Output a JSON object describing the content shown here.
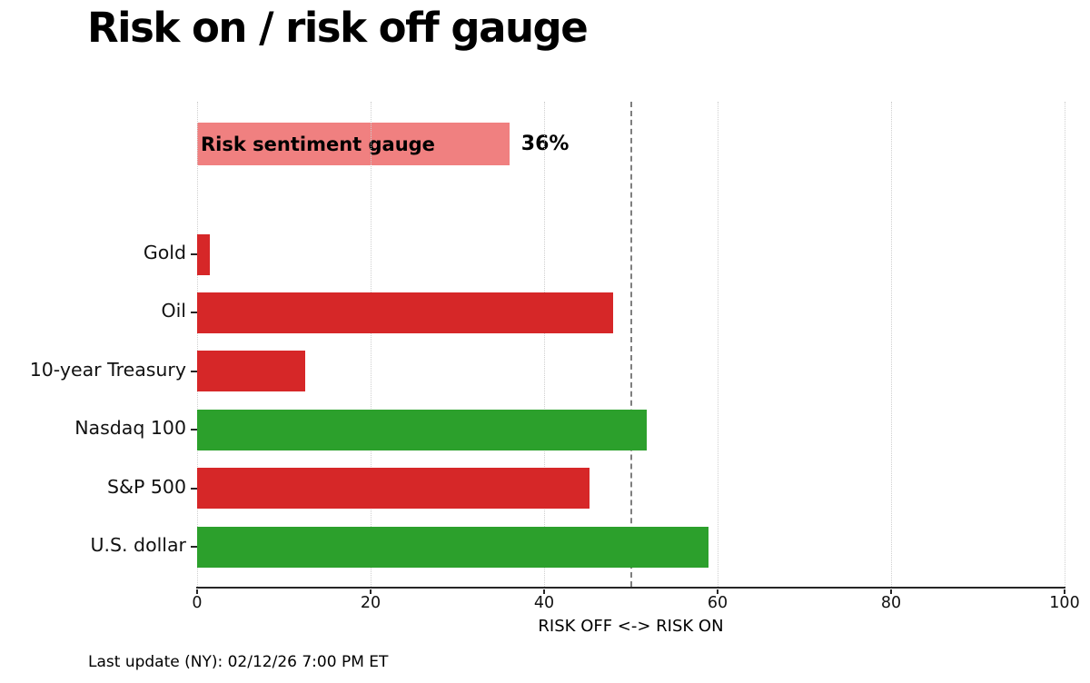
{
  "title": "Risk on / risk off gauge",
  "footer": "Last update (NY): 02/12/26 7:00 PM ET",
  "gauge": {
    "label": "Risk sentiment gauge",
    "value": 36,
    "value_label": "36%",
    "color": "#f08080"
  },
  "chart_data": {
    "type": "bar",
    "orientation": "horizontal",
    "title": "Risk on / risk off gauge",
    "xlabel": "RISK OFF <-> RISK ON",
    "xlim": [
      0,
      100
    ],
    "xticks": [
      0,
      20,
      40,
      60,
      80,
      100
    ],
    "grid": "dotted-vertical",
    "reference_line_x": 50,
    "gauge_series": {
      "label": "Risk sentiment gauge",
      "value": 36,
      "color": "#f08080"
    },
    "categories": [
      "Gold",
      "Oil",
      "10-year Treasury",
      "Nasdaq 100",
      "S&P 500",
      "U.S. dollar"
    ],
    "values": [
      1.5,
      48,
      12.5,
      51.8,
      45.2,
      59
    ],
    "colors": [
      "#d62728",
      "#d62728",
      "#d62728",
      "#2ca02c",
      "#d62728",
      "#2ca02c"
    ],
    "risk_off_color": "#d62728",
    "risk_on_color": "#2ca02c"
  }
}
